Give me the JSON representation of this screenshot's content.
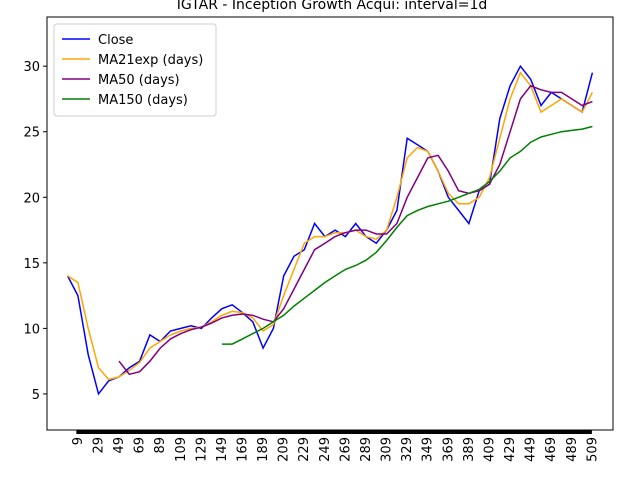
{
  "chart_data": {
    "type": "line",
    "title": "IGTAR - Inception Growth Acqui: interval=1d",
    "x": [
      0,
      10,
      20,
      30,
      40,
      50,
      60,
      70,
      80,
      90,
      100,
      110,
      120,
      130,
      140,
      150,
      160,
      170,
      180,
      190,
      200,
      210,
      220,
      230,
      240,
      250,
      260,
      270,
      280,
      290,
      300,
      310,
      320,
      330,
      340,
      350,
      360,
      370,
      380,
      390,
      400,
      410,
      420,
      430,
      440,
      450,
      460,
      470,
      480,
      490,
      500,
      510
    ],
    "series": [
      {
        "name": "Close",
        "color": "#0000ff",
        "values": [
          14,
          12.5,
          8,
          5,
          6.0,
          6.3,
          7,
          7.5,
          9.5,
          9,
          9.8,
          10,
          10.2,
          10,
          10.8,
          11.5,
          11.8,
          11.2,
          10.5,
          8.5,
          10,
          14,
          15.5,
          16,
          18,
          17,
          17.5,
          17,
          18,
          17,
          16.5,
          17.5,
          19,
          24.5,
          24,
          23.5,
          22,
          20,
          19,
          18,
          20.5,
          21,
          26,
          28.5,
          30,
          29,
          27,
          28,
          27.5,
          27,
          26.5,
          29.5
        ]
      },
      {
        "name": "MA21exp (days)",
        "color": "#ffa500",
        "values": [
          14,
          13.5,
          10,
          7,
          6.1,
          6.3,
          6.8,
          7.4,
          8.5,
          9,
          9.5,
          9.8,
          10,
          10.1,
          10.5,
          11,
          11.3,
          11.2,
          10.8,
          9.8,
          10.3,
          12.5,
          14.5,
          16.5,
          17,
          17,
          17.3,
          17.3,
          17.5,
          17,
          16.8,
          17.5,
          20,
          23,
          23.8,
          23.5,
          22,
          20.3,
          19.5,
          19.5,
          20,
          21.5,
          24.5,
          27.5,
          29.5,
          28.5,
          26.5,
          27,
          27.5,
          27,
          26.5,
          28
        ]
      },
      {
        "name": "MA50 (days)",
        "color": "#800080",
        "values": [
          null,
          null,
          null,
          null,
          null,
          7.5,
          6.5,
          6.7,
          7.5,
          8.5,
          9.2,
          9.6,
          9.9,
          10.1,
          10.4,
          10.8,
          11,
          11.1,
          11,
          10.7,
          10.5,
          11.5,
          13,
          14.5,
          16,
          16.5,
          17,
          17.3,
          17.5,
          17.5,
          17.2,
          17.2,
          18,
          20,
          21.5,
          23,
          23.2,
          22,
          20.5,
          20.3,
          20.5,
          21,
          22.5,
          25,
          27.5,
          28.5,
          28.2,
          28,
          28,
          27.5,
          27,
          27.3
        ]
      },
      {
        "name": "MA150 (days)",
        "color": "#008000",
        "values": [
          null,
          null,
          null,
          null,
          null,
          null,
          null,
          null,
          null,
          null,
          null,
          null,
          null,
          null,
          null,
          8.8,
          8.8,
          9.2,
          9.6,
          10,
          10.5,
          11,
          11.7,
          12.3,
          12.9,
          13.5,
          14,
          14.5,
          14.8,
          15.2,
          15.8,
          16.7,
          17.7,
          18.6,
          19,
          19.3,
          19.5,
          19.7,
          20,
          20.3,
          20.6,
          21.2,
          22,
          23,
          23.5,
          24.2,
          24.6,
          24.8,
          25,
          25.1,
          25.2,
          25.4
        ]
      }
    ],
    "xlim": [
      -20,
      530
    ],
    "ylim": [
      2.25,
      33.75
    ],
    "xticks": [
      9,
      29,
      49,
      69,
      89,
      109,
      129,
      149,
      169,
      189,
      209,
      229,
      249,
      269,
      289,
      309,
      329,
      349,
      369,
      389,
      409,
      429,
      449,
      469,
      489,
      509
    ],
    "yticks": [
      5,
      10,
      15,
      20,
      25,
      30
    ],
    "legend": "upper left"
  }
}
